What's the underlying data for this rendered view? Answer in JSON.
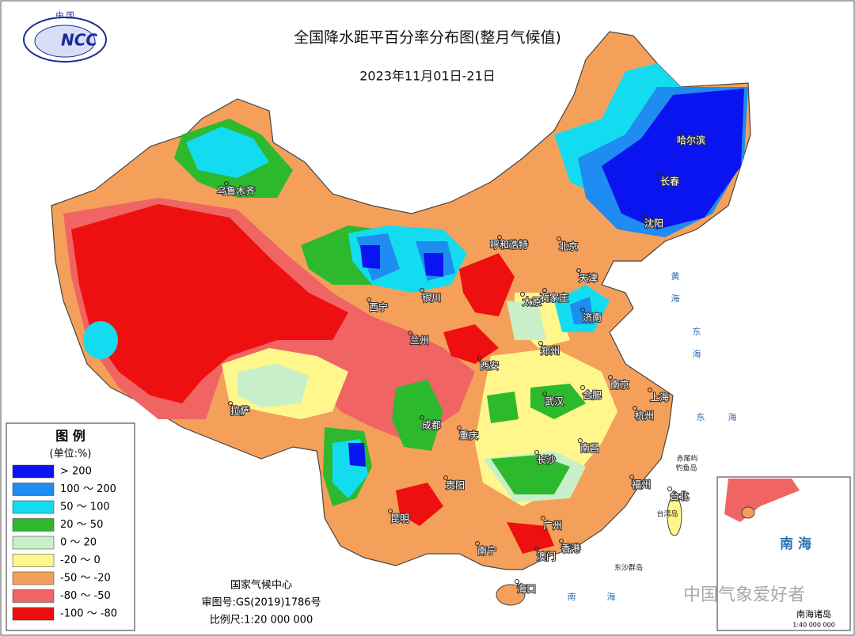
{
  "header": {
    "logo_top": "中 国",
    "logo_text": "NCC",
    "title": "全国降水距平百分率分布图(整月气候值)",
    "subtitle": "2023年11月01日-21日"
  },
  "legend": {
    "title": "图 例",
    "unit": "(单位:%)",
    "items": [
      {
        "label": "> 200",
        "color": "#0a14f0"
      },
      {
        "label": "100 ～ 200",
        "color": "#1e8cf0"
      },
      {
        "label": "50 ～ 100",
        "color": "#14dcf0"
      },
      {
        "label": "20 ～ 50",
        "color": "#2db92d"
      },
      {
        "label": "0 ～ 20",
        "color": "#c8f0c8"
      },
      {
        "label": "-20 ～ 0",
        "color": "#fff78c"
      },
      {
        "label": "-50 ～ -20",
        "color": "#f5a05a"
      },
      {
        "label": "-80 ～ -50",
        "color": "#f06464"
      },
      {
        "label": "-100 ～ -80",
        "color": "#ee1010"
      }
    ]
  },
  "cities": [
    "哈尔滨",
    "长春",
    "沈阳",
    "北京",
    "天津",
    "呼和浩特",
    "太原",
    "石家庄",
    "济南",
    "郑州",
    "西安",
    "银川",
    "兰州",
    "西宁",
    "乌鲁木齐",
    "拉萨",
    "成都",
    "重庆",
    "武汉",
    "合肥",
    "南京",
    "上海",
    "杭州",
    "南昌",
    "长沙",
    "贵阳",
    "昆明",
    "福州",
    "台北",
    "广州",
    "香港",
    "澳门",
    "南宁",
    "海口"
  ],
  "seas": [
    "黄",
    "海",
    "东",
    "海",
    "东",
    "海",
    "南",
    "海"
  ],
  "islands": [
    "赤尾屿",
    "钓鱼岛",
    "台湾岛",
    "东沙群岛"
  ],
  "footer": [
    "国家气候中心",
    "审图号:GS(2019)1786号",
    "比例尺:1:20 000 000"
  ],
  "inset": {
    "title": "南 海",
    "label": "南海诸岛",
    "scale": "1:40 000 000"
  },
  "watermark": "中国气象爱好者"
}
